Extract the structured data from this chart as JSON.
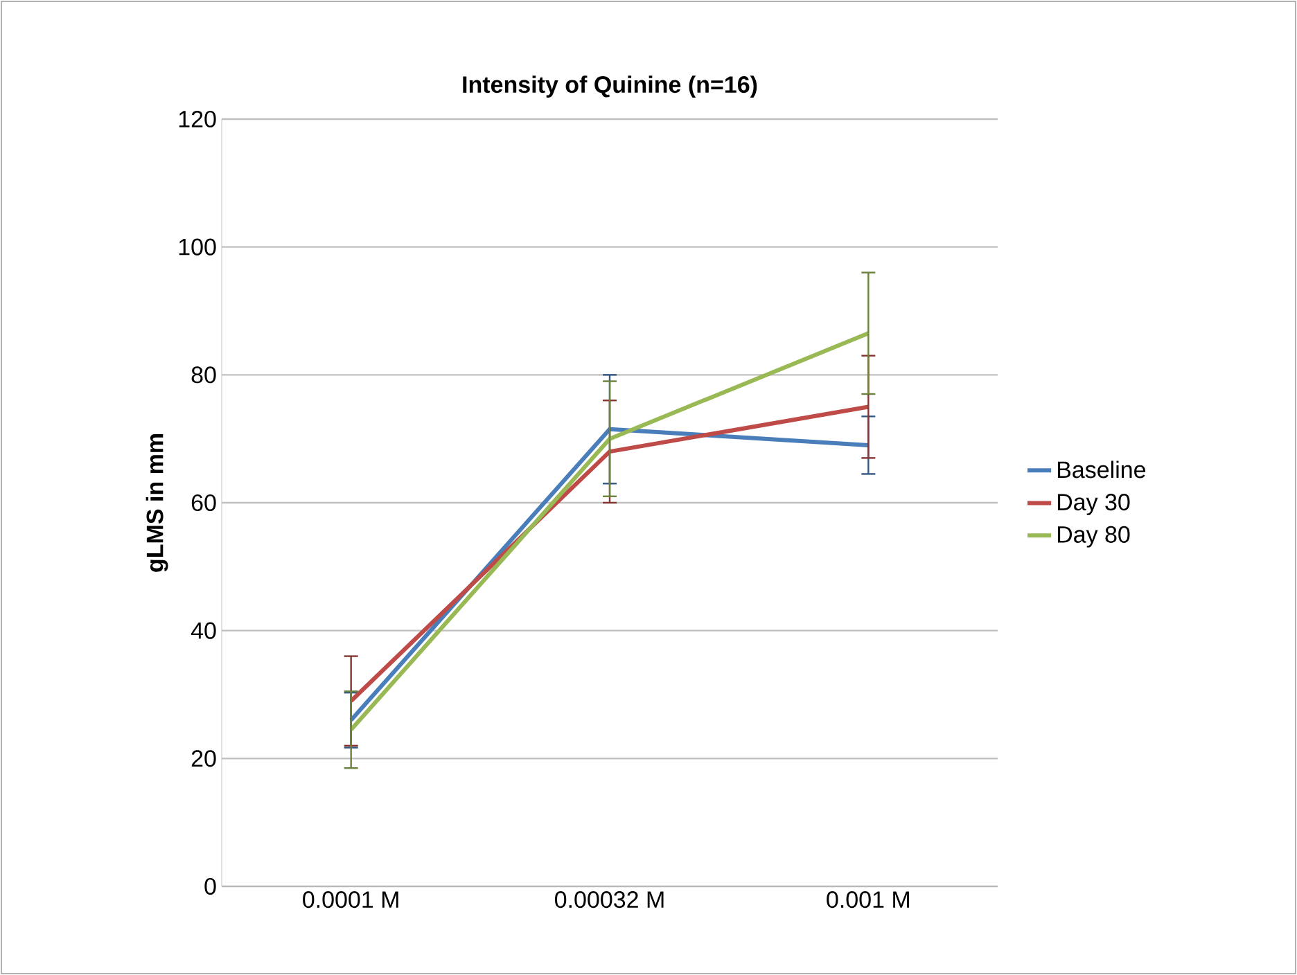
{
  "chart_data": {
    "type": "line",
    "title": "Intensity of Quinine (n=16)",
    "ylabel": "gLMS in mm",
    "categories": [
      "0.0001 M",
      "0.00032 M",
      "0.001 M"
    ],
    "series": [
      {
        "name": "Baseline",
        "color": "#4a7ebb",
        "values": [
          26,
          71.5,
          69
        ],
        "errors": [
          4.3,
          8.5,
          4.5
        ]
      },
      {
        "name": "Day 30",
        "color": "#be4b48",
        "values": [
          29,
          68,
          75
        ],
        "errors": [
          7,
          8,
          8
        ]
      },
      {
        "name": "Day 80",
        "color": "#98b954",
        "values": [
          24.5,
          70,
          86.5
        ],
        "errors": [
          6,
          9,
          9.5
        ]
      }
    ],
    "ylim": [
      0,
      120
    ],
    "yticks": [
      0,
      20,
      40,
      60,
      80,
      100,
      120
    ],
    "grid": "y",
    "legend": "right",
    "marker": "none",
    "line_style": "solid"
  }
}
